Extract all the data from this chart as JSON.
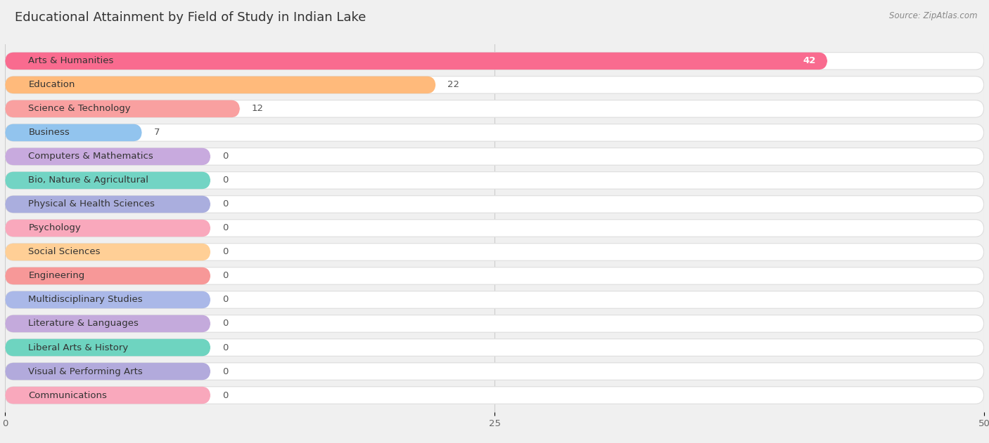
{
  "title": "Educational Attainment by Field of Study in Indian Lake",
  "source": "Source: ZipAtlas.com",
  "categories": [
    "Arts & Humanities",
    "Education",
    "Science & Technology",
    "Business",
    "Computers & Mathematics",
    "Bio, Nature & Agricultural",
    "Physical & Health Sciences",
    "Psychology",
    "Social Sciences",
    "Engineering",
    "Multidisciplinary Studies",
    "Literature & Languages",
    "Liberal Arts & History",
    "Visual & Performing Arts",
    "Communications"
  ],
  "values": [
    42,
    22,
    12,
    7,
    0,
    0,
    0,
    0,
    0,
    0,
    0,
    0,
    0,
    0,
    0
  ],
  "bar_colors": [
    "#F96B8F",
    "#FFBA7B",
    "#F9A0A0",
    "#92C4EE",
    "#C8AADE",
    "#72D4C4",
    "#AAAEDE",
    "#F9A8BC",
    "#FFCF96",
    "#F79898",
    "#AAB8E8",
    "#C4AADC",
    "#6ED4C0",
    "#B2AADC",
    "#F9A8BC"
  ],
  "background_color": "#f0f0f0",
  "bar_bg_color": "#ffffff",
  "bar_bg_border": "#dddddd",
  "xlim": [
    0,
    50
  ],
  "xticks": [
    0,
    25,
    50
  ],
  "bar_height": 0.72,
  "zero_bar_width": 10.5,
  "title_fontsize": 13,
  "label_fontsize": 9.5,
  "value_fontsize": 9.5,
  "rounding_size": 0.45
}
